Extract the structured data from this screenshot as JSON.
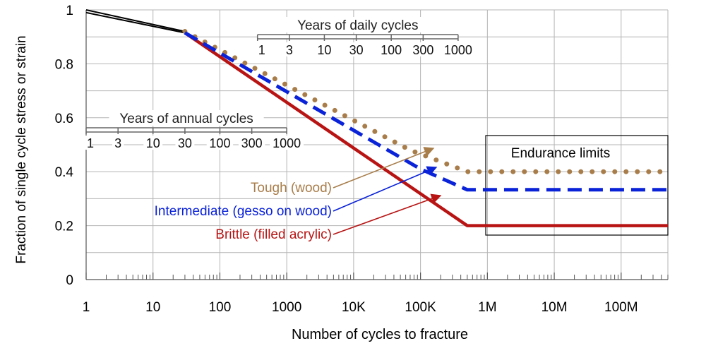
{
  "chart_data": {
    "type": "line",
    "title": "",
    "xlabel": "Number of cycles to fracture",
    "ylabel": "Fraction of single cycle stress or strain",
    "x_scale": "log",
    "xlim": [
      1,
      500000000
    ],
    "ylim": [
      0,
      1
    ],
    "grid": true,
    "x_ticks": [
      {
        "value": 1,
        "label": "1"
      },
      {
        "value": 10,
        "label": "10"
      },
      {
        "value": 100,
        "label": "100"
      },
      {
        "value": 1000,
        "label": "1000"
      },
      {
        "value": 10000,
        "label": "10K"
      },
      {
        "value": 100000,
        "label": "100K"
      },
      {
        "value": 1000000,
        "label": "1M"
      },
      {
        "value": 10000000,
        "label": "10M"
      },
      {
        "value": 100000000,
        "label": "100M"
      }
    ],
    "y_ticks": [
      {
        "value": 0,
        "label": "0"
      },
      {
        "value": 0.2,
        "label": "0.2"
      },
      {
        "value": 0.4,
        "label": "0.4"
      },
      {
        "value": 0.6,
        "label": "0.6"
      },
      {
        "value": 0.8,
        "label": "0.8"
      },
      {
        "value": 1,
        "label": "1"
      }
    ],
    "series": [
      {
        "name": "Tough (wood)",
        "color": "#a87d4a",
        "style": "dotted",
        "x": [
          1,
          30,
          70000,
          500000,
          500000000
        ],
        "y": [
          1,
          0.92,
          0.48,
          0.4,
          0.4
        ]
      },
      {
        "name": "Intermediate (gesso on wood)",
        "color": "#0a22d8",
        "style": "dashed",
        "x": [
          1,
          30,
          100000,
          500000,
          500000000
        ],
        "y": [
          0.99,
          0.915,
          0.41,
          0.333,
          0.333
        ]
      },
      {
        "name": "Brittle (filled acrylic)",
        "color": "#b81414",
        "style": "solid",
        "x": [
          1,
          30,
          500000,
          500000000
        ],
        "y": [
          0.99,
          0.915,
          0.2,
          0.2
        ]
      }
    ],
    "annotations": {
      "tough_label": "Tough (wood)",
      "intermediate_label": "Intermediate (gesso on wood)",
      "brittle_label": "Brittle (filled acrylic)",
      "endurance_label": "Endurance limits",
      "daily_scale": {
        "title": "Years of daily cycles",
        "ticks": [
          {
            "years": 1,
            "label": "1"
          },
          {
            "years": 3,
            "label": "3"
          },
          {
            "years": 10,
            "label": "10"
          },
          {
            "years": 30,
            "label": "30"
          },
          {
            "years": 100,
            "label": "100"
          },
          {
            "years": 300,
            "label": "300"
          },
          {
            "years": 1000,
            "label": "1000"
          }
        ]
      },
      "annual_scale": {
        "title": "Years of annual cycles",
        "ticks": [
          {
            "years": 1,
            "label": "1"
          },
          {
            "years": 3,
            "label": "3"
          },
          {
            "years": 10,
            "label": "10"
          },
          {
            "years": 30,
            "label": "30"
          },
          {
            "years": 100,
            "label": "100"
          },
          {
            "years": 300,
            "label": "300"
          },
          {
            "years": 1000,
            "label": "1000"
          }
        ]
      }
    }
  }
}
